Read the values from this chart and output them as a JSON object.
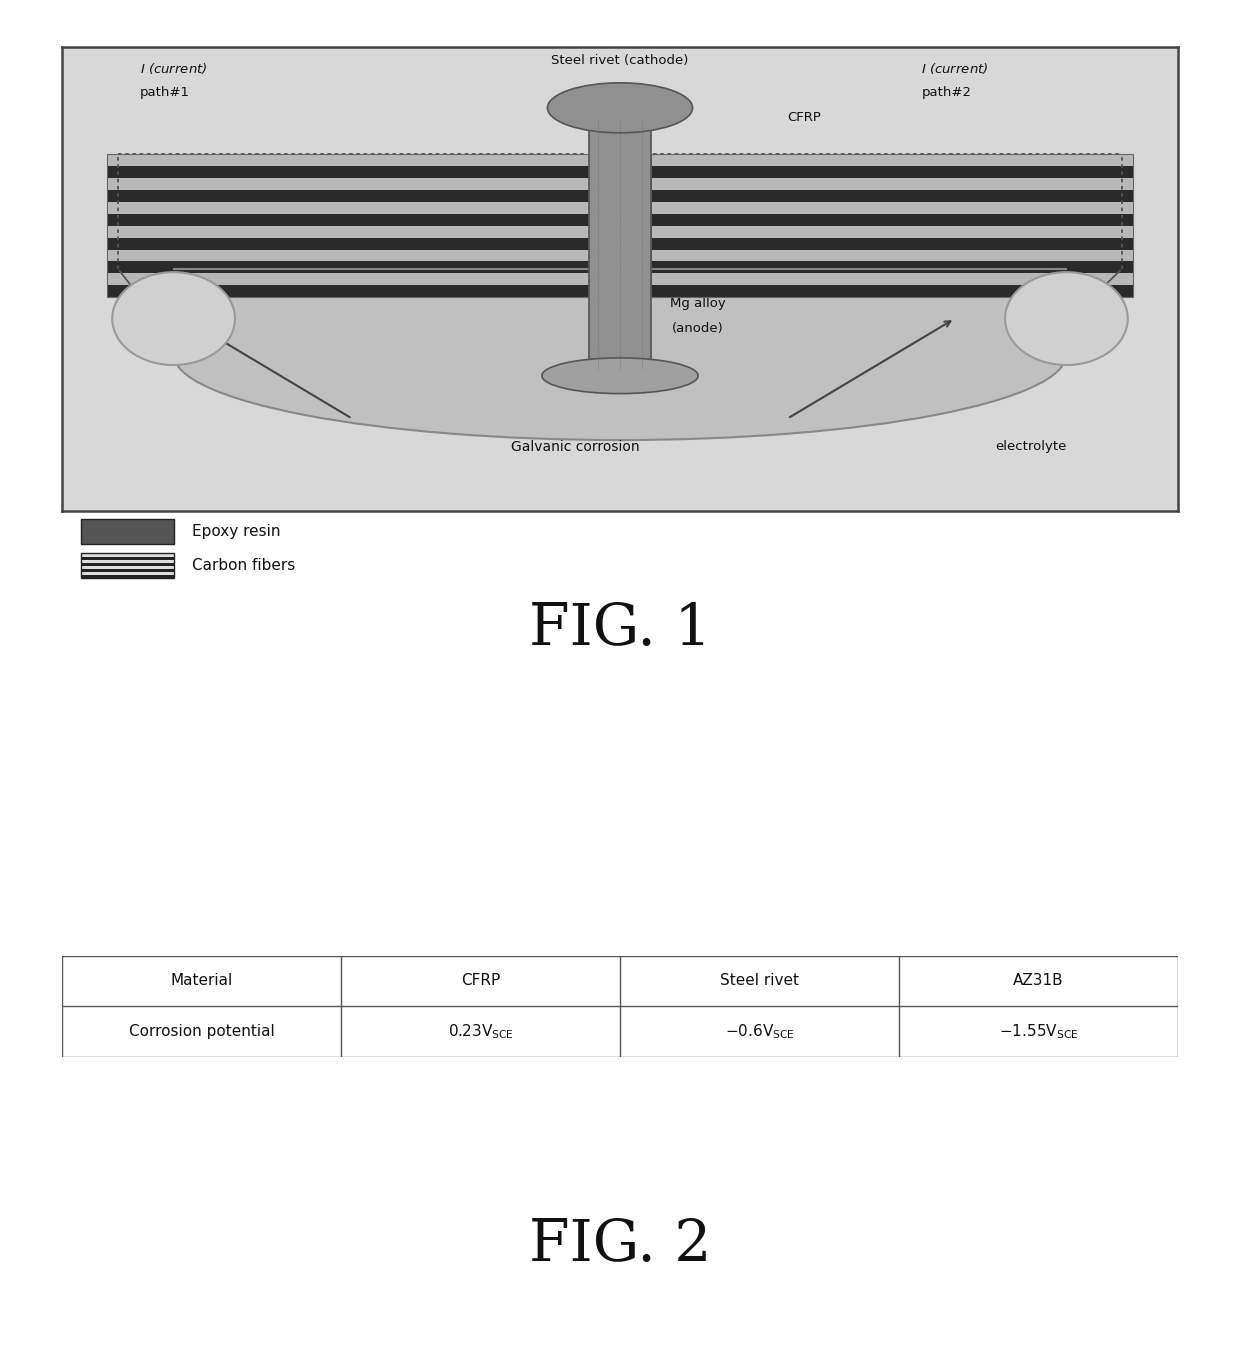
{
  "fig_width": 12.4,
  "fig_height": 13.46,
  "bg_color": "#ffffff",
  "text_color": "#111111",
  "diagram_bg": "#d8d8d8",
  "cfrp_dark": "#2a2a2a",
  "cfrp_light": "#b8b8b8",
  "mg_color": "#b8b8b8",
  "mg_edge": "#777777",
  "rivet_color": "#909090",
  "rivet_edge": "#555555",
  "elec_color": "#c8c8c8",
  "elec_edge": "#888888",
  "epoxy_color": "#555555",
  "table_headers": [
    "Material",
    "CFRP",
    "Steel rivet",
    "AZ31B"
  ],
  "table_row2": [
    "Corrosion potential",
    "0.23V_SCE",
    "-0.6V_SCE",
    "-1.55V_SCE"
  ],
  "fig1_label": "FIG. 1",
  "fig2_label": "FIG. 2",
  "n_cfrp_layers": 12
}
